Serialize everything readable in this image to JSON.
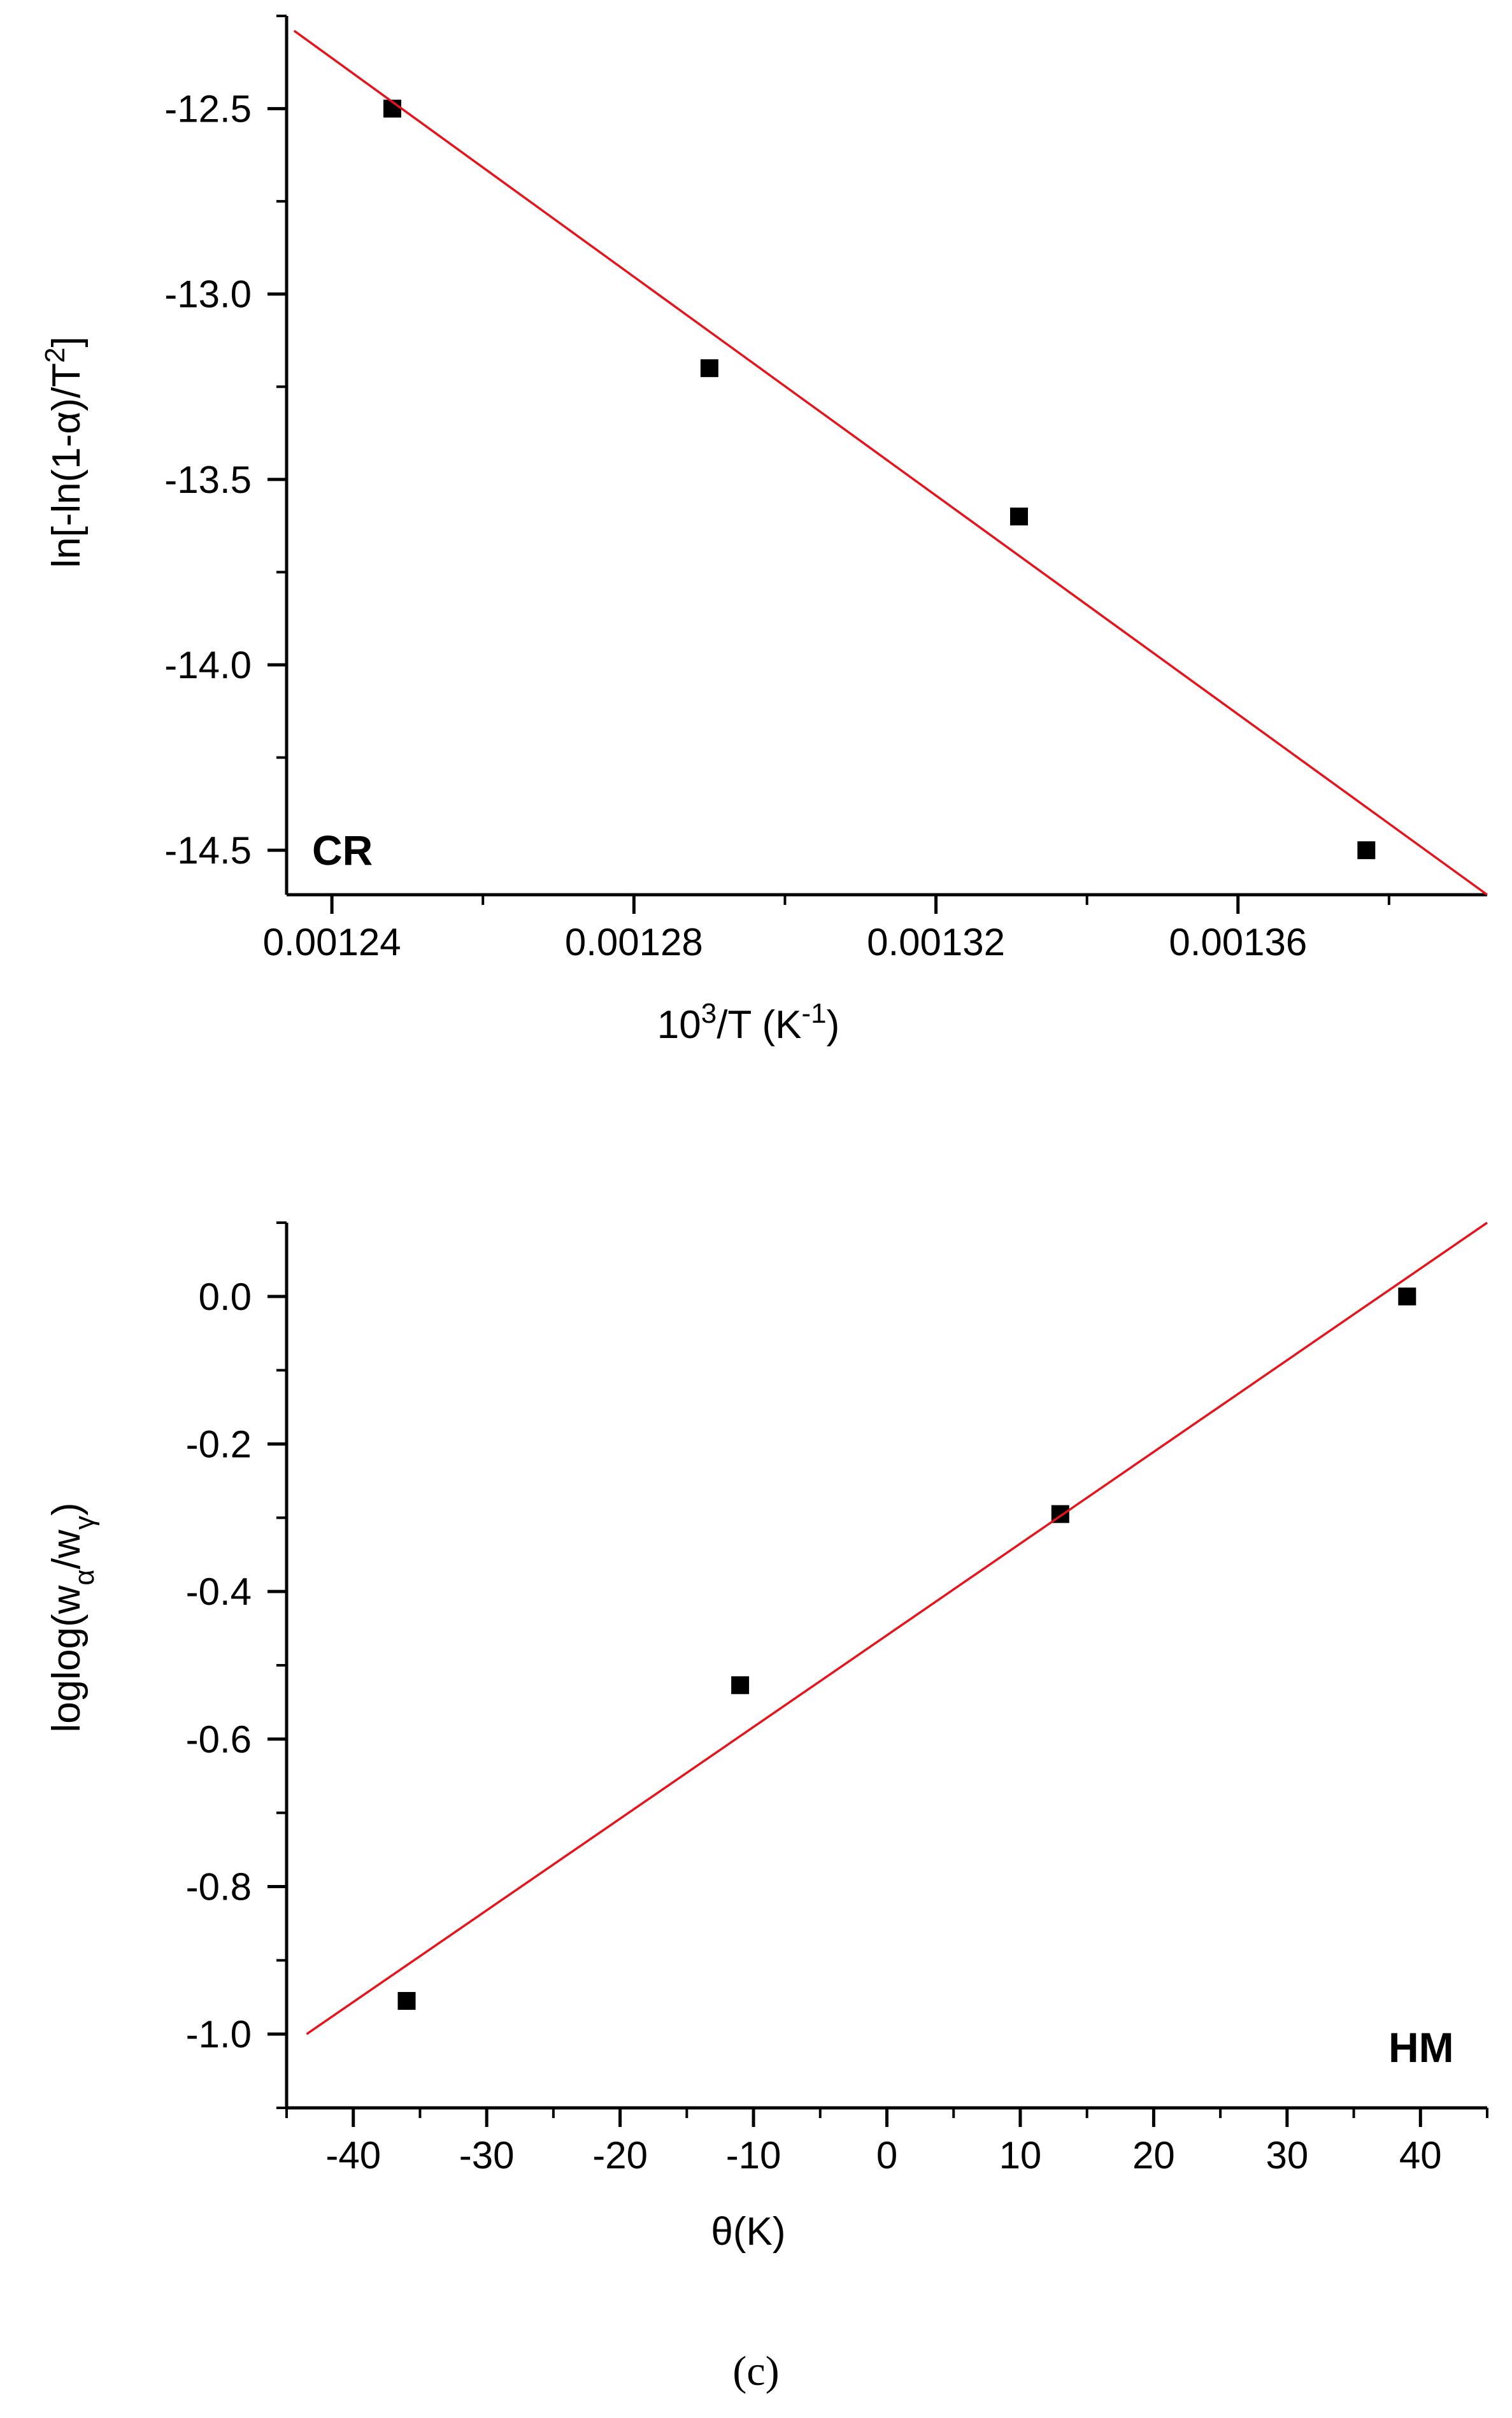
{
  "chart_data": [
    {
      "type": "scatter",
      "panel_label": "CR",
      "xlabel": {
        "base": "10",
        "sup1": "3",
        "mid": "/T (K",
        "sup2": "-1",
        "end": ")"
      },
      "ylabel": {
        "main": "ln[-ln(1-α)/T",
        "sup": "2",
        "end": "]"
      },
      "xlim": [
        0.001234,
        0.001393
      ],
      "ylim": [
        -14.62,
        -12.25
      ],
      "xticks": [
        0.00124,
        0.00128,
        0.00132,
        0.00136
      ],
      "xtick_labels": [
        "0.00124",
        "0.00128",
        "0.00132",
        "0.00136"
      ],
      "xminor": [
        0.00126,
        0.0013,
        0.00134,
        0.00138
      ],
      "yticks": [
        -12.5,
        -13.0,
        -13.5,
        -14.0,
        -14.5
      ],
      "ytick_labels": [
        "-12.5",
        "-13.0",
        "-13.5",
        "-14.0",
        "-14.5"
      ],
      "yminor": [
        -12.25,
        -12.75,
        -13.25,
        -13.75,
        -14.25
      ],
      "grid": false,
      "legend": "none",
      "series": [
        {
          "type": "scatter",
          "color": "#000000",
          "points": [
            [
              0.001248,
              -12.5
            ],
            [
              0.00129,
              -13.2
            ],
            [
              0.001331,
              -13.6
            ],
            [
              0.001377,
              -14.5
            ]
          ]
        },
        {
          "type": "line",
          "color": "#e8131a",
          "points": [
            [
              0.001235,
              -12.29
            ],
            [
              0.001393,
              -14.62
            ]
          ]
        }
      ]
    },
    {
      "type": "scatter",
      "panel_label": "HM",
      "xlabel": {
        "main": "θ(K)"
      },
      "ylabel": {
        "main": "loglog(w",
        "sub1": "α",
        "mid": "/w",
        "sub2": "γ",
        "end": ")"
      },
      "xlim": [
        -45,
        45
      ],
      "ylim": [
        -1.1,
        0.1
      ],
      "xticks": [
        -40,
        -30,
        -20,
        -10,
        0,
        10,
        20,
        30,
        40
      ],
      "xtick_labels": [
        "-40",
        "-30",
        "-20",
        "-10",
        "0",
        "10",
        "20",
        "30",
        "40"
      ],
      "xminor": [
        -45,
        -35,
        -25,
        -15,
        -5,
        5,
        15,
        25,
        35,
        45
      ],
      "yticks": [
        0.0,
        -0.2,
        -0.4,
        -0.6,
        -0.8,
        -1.0
      ],
      "ytick_labels": [
        "0.0",
        "-0.2",
        "-0.4",
        "-0.6",
        "-0.8",
        "-1.0"
      ],
      "yminor": [
        0.1,
        -0.1,
        -0.3,
        -0.5,
        -0.7,
        -0.9,
        -1.1
      ],
      "grid": false,
      "legend": "none",
      "series": [
        {
          "type": "scatter",
          "color": "#000000",
          "points": [
            [
              -36,
              -0.955
            ],
            [
              -11,
              -0.527
            ],
            [
              13,
              -0.295
            ],
            [
              39,
              0.0
            ]
          ]
        },
        {
          "type": "line",
          "color": "#e8131a",
          "points": [
            [
              -43.5,
              -1.0
            ],
            [
              45,
              0.1
            ]
          ]
        }
      ]
    }
  ],
  "caption": "(c)"
}
